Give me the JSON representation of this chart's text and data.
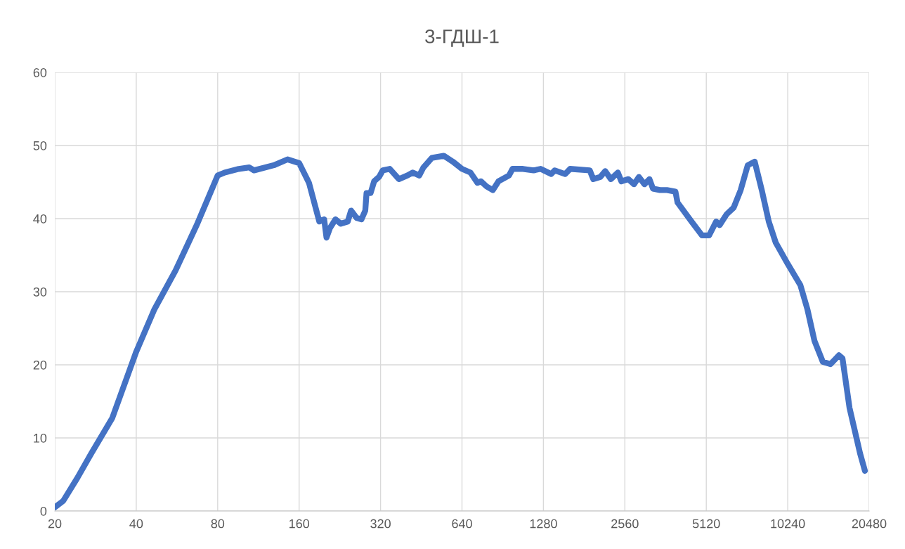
{
  "chart_data": {
    "type": "line",
    "title": "3-ГДШ-1",
    "log": "x",
    "grid": true,
    "legend": false,
    "marker": "none",
    "line_style": "solid",
    "xlim": [
      20,
      20480
    ],
    "xticks": [
      20,
      40,
      80,
      160,
      320,
      640,
      1280,
      2560,
      5120,
      10240,
      20480
    ],
    "ylim": [
      0,
      60
    ],
    "yticks": [
      0,
      10,
      20,
      30,
      40,
      50,
      60
    ],
    "series": [
      {
        "color": "#4472c4",
        "x": [
          20,
          21.5,
          24.2,
          27.3,
          32.6,
          40,
          46.7,
          55.9,
          66.9,
          80,
          84.9,
          95.7,
          104.7,
          109,
          129,
          145,
          160,
          174,
          190,
          198,
          202,
          208,
          218,
          228,
          242,
          249,
          261,
          272,
          281,
          284,
          294,
          303,
          316,
          326,
          346,
          356,
          374,
          402,
          421,
          445,
          461,
          495,
          548,
          592,
          640,
          688,
          730,
          752,
          789,
          832,
          873,
          955,
          984,
          1076,
          1177,
          1250,
          1367,
          1409,
          1540,
          1607,
          1899,
          1957,
          2077,
          2166,
          2272,
          2412,
          2485,
          2638,
          2767,
          2885,
          3026,
          3156,
          3252,
          3452,
          3664,
          3937,
          4009,
          4517,
          4940,
          5243,
          5568,
          5737,
          6089,
          6464,
          6860,
          7286,
          7732,
          8210,
          8714,
          9250,
          10240,
          11404,
          12106,
          12854,
          13808,
          14746,
          15838,
          16316,
          17330,
          18950,
          19758
        ],
        "values": [
          0.5,
          1.4,
          4.5,
          7.9,
          12.7,
          21.8,
          27.6,
          32.9,
          39.1,
          45.9,
          46.3,
          46.8,
          47.0,
          46.6,
          47.3,
          48.1,
          47.6,
          44.9,
          39.6,
          39.9,
          37.4,
          38.7,
          39.9,
          39.3,
          39.6,
          41.1,
          40.1,
          39.9,
          41.1,
          43.5,
          43.5,
          45.1,
          45.7,
          46.6,
          46.8,
          46.3,
          45.4,
          45.9,
          46.3,
          45.9,
          47.0,
          48.3,
          48.6,
          47.8,
          46.8,
          46.3,
          44.9,
          45.1,
          44.4,
          43.9,
          45.1,
          45.9,
          46.8,
          46.8,
          46.6,
          46.8,
          46.1,
          46.6,
          46.1,
          46.8,
          46.6,
          45.4,
          45.7,
          46.5,
          45.4,
          46.3,
          45.1,
          45.4,
          44.7,
          45.7,
          44.7,
          45.4,
          44.1,
          43.9,
          43.9,
          43.7,
          42.2,
          39.6,
          37.7,
          37.7,
          39.6,
          39.1,
          40.6,
          41.5,
          43.9,
          47.3,
          47.8,
          43.9,
          39.6,
          36.7,
          33.8,
          30.9,
          27.6,
          23.3,
          20.4,
          20.1,
          21.3,
          20.9,
          14.1,
          7.9,
          5.5
        ]
      }
    ]
  }
}
